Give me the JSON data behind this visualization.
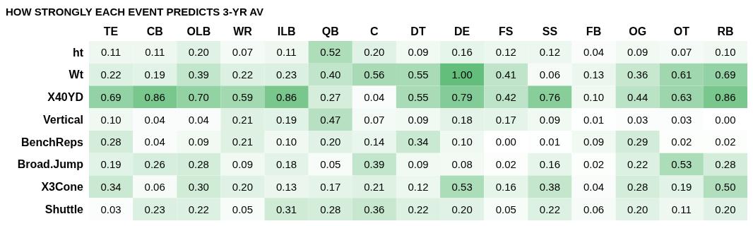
{
  "chart_data": {
    "type": "heatmap",
    "title": "HOW STRONGLY EACH EVENT PREDICTS 3-YR AV",
    "categories": [
      "TE",
      "CB",
      "OLB",
      "WR",
      "ILB",
      "QB",
      "C",
      "DT",
      "DE",
      "FS",
      "SS",
      "FB",
      "OG",
      "OT",
      "RB"
    ],
    "y_categories": [
      "ht",
      "Wt",
      "X40YD",
      "Vertical",
      "BenchReps",
      "Broad.Jump",
      "X3Cone",
      "Shuttle"
    ],
    "cells": [
      [
        0.11,
        0.11,
        0.2,
        0.07,
        0.11,
        0.52,
        0.2,
        0.09,
        0.16,
        0.12,
        0.12,
        0.04,
        0.09,
        0.07,
        0.1
      ],
      [
        0.22,
        0.19,
        0.39,
        0.22,
        0.23,
        0.4,
        0.56,
        0.55,
        1.0,
        0.41,
        0.06,
        0.13,
        0.36,
        0.61,
        0.69
      ],
      [
        0.69,
        0.86,
        0.7,
        0.59,
        0.86,
        0.27,
        0.04,
        0.55,
        0.79,
        0.42,
        0.76,
        0.1,
        0.44,
        0.63,
        0.86
      ],
      [
        0.1,
        0.04,
        0.04,
        0.21,
        0.19,
        0.47,
        0.07,
        0.09,
        0.18,
        0.17,
        0.09,
        0.01,
        0.03,
        0.03,
        0.0
      ],
      [
        0.28,
        0.04,
        0.09,
        0.21,
        0.1,
        0.2,
        0.14,
        0.34,
        0.1,
        0.0,
        0.01,
        0.09,
        0.29,
        0.02,
        0.02
      ],
      [
        0.19,
        0.26,
        0.28,
        0.09,
        0.18,
        0.05,
        0.39,
        0.09,
        0.08,
        0.02,
        0.16,
        0.02,
        0.22,
        0.53,
        0.28
      ],
      [
        0.34,
        0.06,
        0.3,
        0.2,
        0.13,
        0.17,
        0.21,
        0.12,
        0.53,
        0.16,
        0.38,
        0.04,
        0.28,
        0.19,
        0.5
      ],
      [
        0.03,
        0.23,
        0.22,
        0.05,
        0.31,
        0.28,
        0.36,
        0.22,
        0.2,
        0.05,
        0.22,
        0.06,
        0.2,
        0.11,
        0.2
      ]
    ],
    "cell_labels": [
      [
        "0.11",
        "0.11",
        "0.20",
        "0.07",
        "0.11",
        "0.52",
        "0.20",
        "0.09",
        "0.16",
        "0.12",
        "0.12",
        "0.04",
        "0.09",
        "0.07",
        "0.10"
      ],
      [
        "0.22",
        "0.19",
        "0.39",
        "0.22",
        "0.23",
        "0.40",
        "0.56",
        "0.55",
        "1.00",
        "0.41",
        "0.06",
        "0.13",
        "0.36",
        "0.61",
        "0.69"
      ],
      [
        "0.69",
        "0.86",
        "0.70",
        "0.59",
        "0.86",
        "0.27",
        "0.04",
        "0.55",
        "0.79",
        "0.42",
        "0.76",
        "0.10",
        "0.44",
        "0.63",
        "0.86"
      ],
      [
        "0.10",
        "0.04",
        "0.04",
        "0.21",
        "0.19",
        "0.47",
        "0.07",
        "0.09",
        "0.18",
        "0.17",
        "0.09",
        "0.01",
        "0.03",
        "0.03",
        "0.00"
      ],
      [
        "0.28",
        "0.04",
        "0.09",
        "0.21",
        "0.10",
        "0.20",
        "0.14",
        "0.34",
        "0.10",
        "0.00",
        "0.01",
        "0.09",
        "0.29",
        "0.02",
        "0.02"
      ],
      [
        "0.19",
        "0.26",
        "0.28",
        "0.09",
        "0.18",
        "0.05",
        "0.39",
        "0.09",
        "0.08",
        "0.02",
        "0.16",
        "0.02",
        "0.22",
        "0.53",
        "0.28"
      ],
      [
        "0.34",
        "0.06",
        "0.30",
        "0.20",
        "0.13",
        "0.17",
        "0.21",
        "0.12",
        "0.53",
        "0.16",
        "0.38",
        "0.04",
        "0.28",
        "0.19",
        "0.50"
      ],
      [
        "0.03",
        "0.23",
        "0.22",
        "0.05",
        "0.31",
        "0.28",
        "0.36",
        "0.22",
        "0.20",
        "0.05",
        "0.22",
        "0.06",
        "0.20",
        "0.11",
        "0.20"
      ]
    ]
  }
}
